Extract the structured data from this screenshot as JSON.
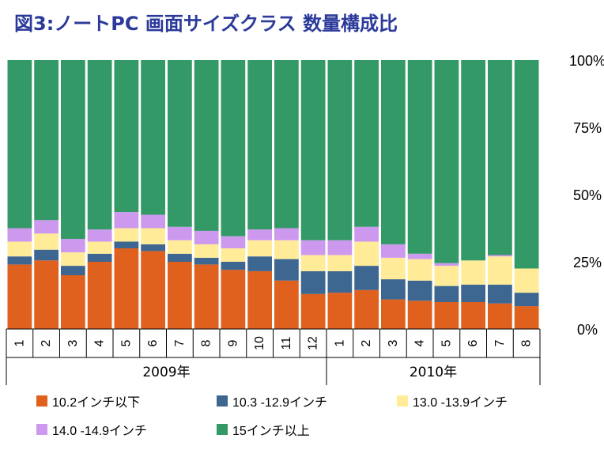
{
  "title": "図3:ノートPC 画面サイズクラス 数量構成比",
  "chart_data": {
    "type": "bar",
    "stacked": true,
    "categories": [
      "1",
      "2",
      "3",
      "4",
      "5",
      "6",
      "7",
      "8",
      "9",
      "10",
      "11",
      "12",
      "1",
      "2",
      "3",
      "4",
      "5",
      "6",
      "7",
      "8"
    ],
    "groups": [
      {
        "label": "2009年",
        "count": 12
      },
      {
        "label": "2010年",
        "count": 8
      }
    ],
    "yticks": [
      "0%",
      "25%",
      "50%",
      "75%",
      "100%"
    ],
    "ylim": [
      0,
      100
    ],
    "y_axis_side": "right",
    "legend_placement": "bottom",
    "series": [
      {
        "name": "10.2インチ以下",
        "color": "#e0601e",
        "values": [
          24,
          25.5,
          20,
          25,
          30,
          29,
          25,
          24,
          22,
          21.5,
          18,
          13,
          13.5,
          14.5,
          11,
          10.5,
          10,
          10,
          9.5,
          8.5
        ]
      },
      {
        "name": "10.3 -12.9インチ",
        "color": "#3d6691",
        "values": [
          3,
          4,
          3.5,
          3,
          2.5,
          2.5,
          3,
          2.5,
          3,
          5.5,
          8,
          8.5,
          8,
          9,
          7.5,
          7.5,
          6,
          6.5,
          7,
          5
        ]
      },
      {
        "name": "13.0 -13.9インチ",
        "color": "#ffeb98",
        "values": [
          5.5,
          6,
          5,
          4.5,
          5,
          6,
          5,
          5,
          5,
          6,
          7,
          6,
          6,
          9,
          8,
          8,
          7.5,
          9,
          10.5,
          9
        ]
      },
      {
        "name": "14.0 -14.9インチ",
        "color": "#cc99ee",
        "values": [
          5,
          5,
          5,
          4.5,
          6,
          5,
          5,
          5,
          4.5,
          4,
          4.5,
          5.5,
          5.5,
          5.5,
          5,
          2,
          1,
          0,
          0.5,
          0
        ]
      },
      {
        "name": "15インチ以上",
        "color": "#339966",
        "values": [
          62.5,
          59.5,
          66.5,
          63,
          56.5,
          57.5,
          62,
          63.5,
          65.5,
          63,
          62.5,
          67,
          67,
          62,
          68.5,
          72,
          75.5,
          74.5,
          72.5,
          77.5
        ]
      }
    ]
  }
}
